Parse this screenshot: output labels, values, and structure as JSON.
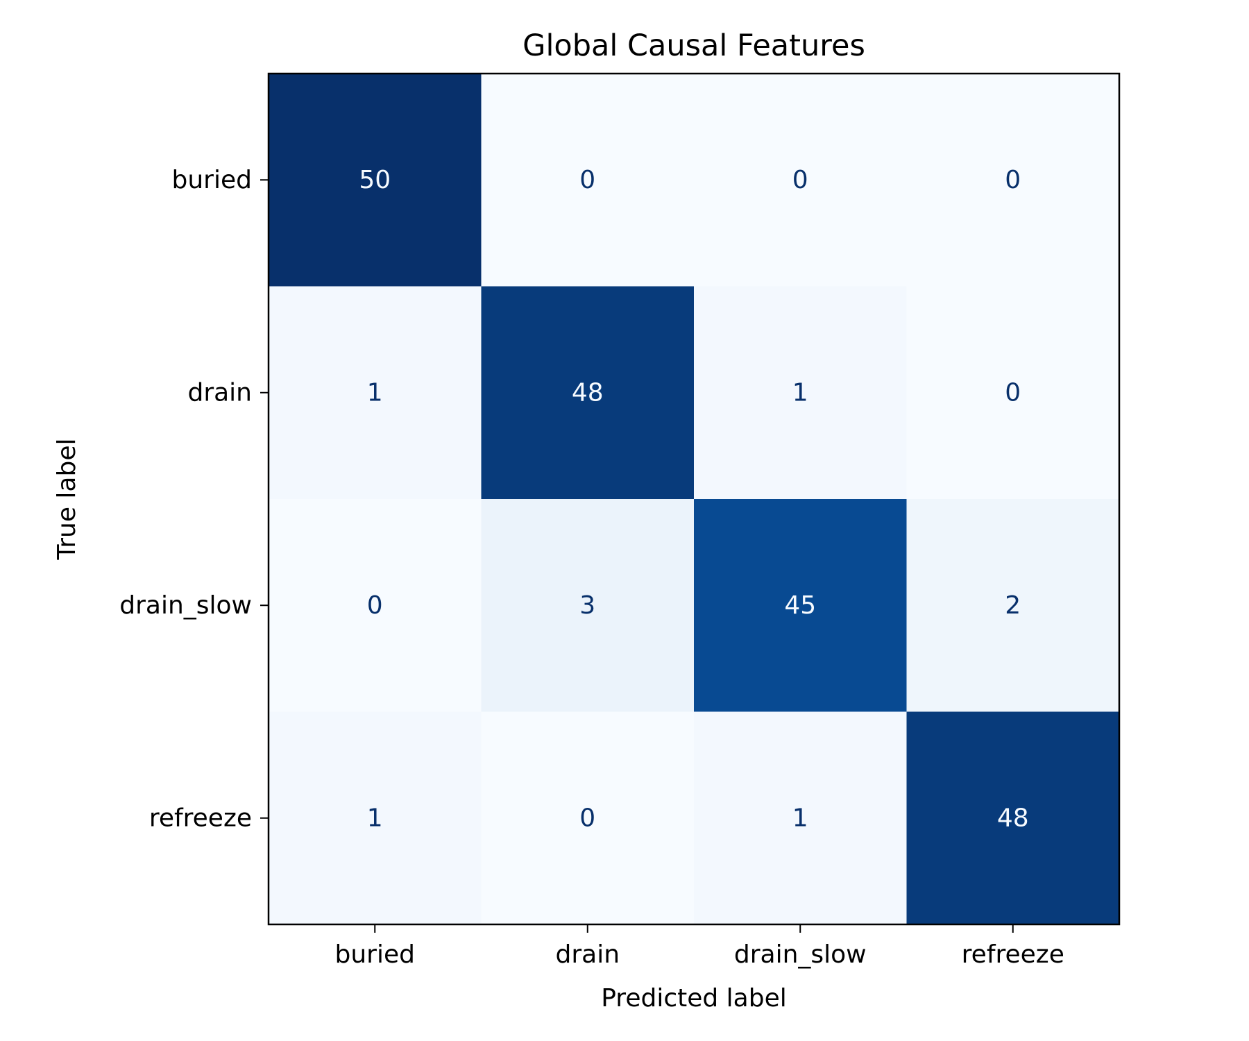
{
  "chart_data": {
    "type": "heatmap",
    "title": "Global Causal Features",
    "xlabel": "Predicted label",
    "ylabel": "True label",
    "x_categories": [
      "buried",
      "drain",
      "drain_slow",
      "refreeze"
    ],
    "y_categories": [
      "buried",
      "drain",
      "drain_slow",
      "refreeze"
    ],
    "values": [
      [
        50,
        0,
        0,
        0
      ],
      [
        1,
        48,
        1,
        0
      ],
      [
        0,
        3,
        45,
        2
      ],
      [
        1,
        0,
        1,
        48
      ]
    ],
    "colormap": "Blues",
    "vmin": 0,
    "vmax": 50,
    "colorbar": false,
    "colors": {
      "low": "#f7fbff",
      "high": "#08306b",
      "text_dark": "#08306b",
      "text_light": "#f7fbff"
    }
  }
}
